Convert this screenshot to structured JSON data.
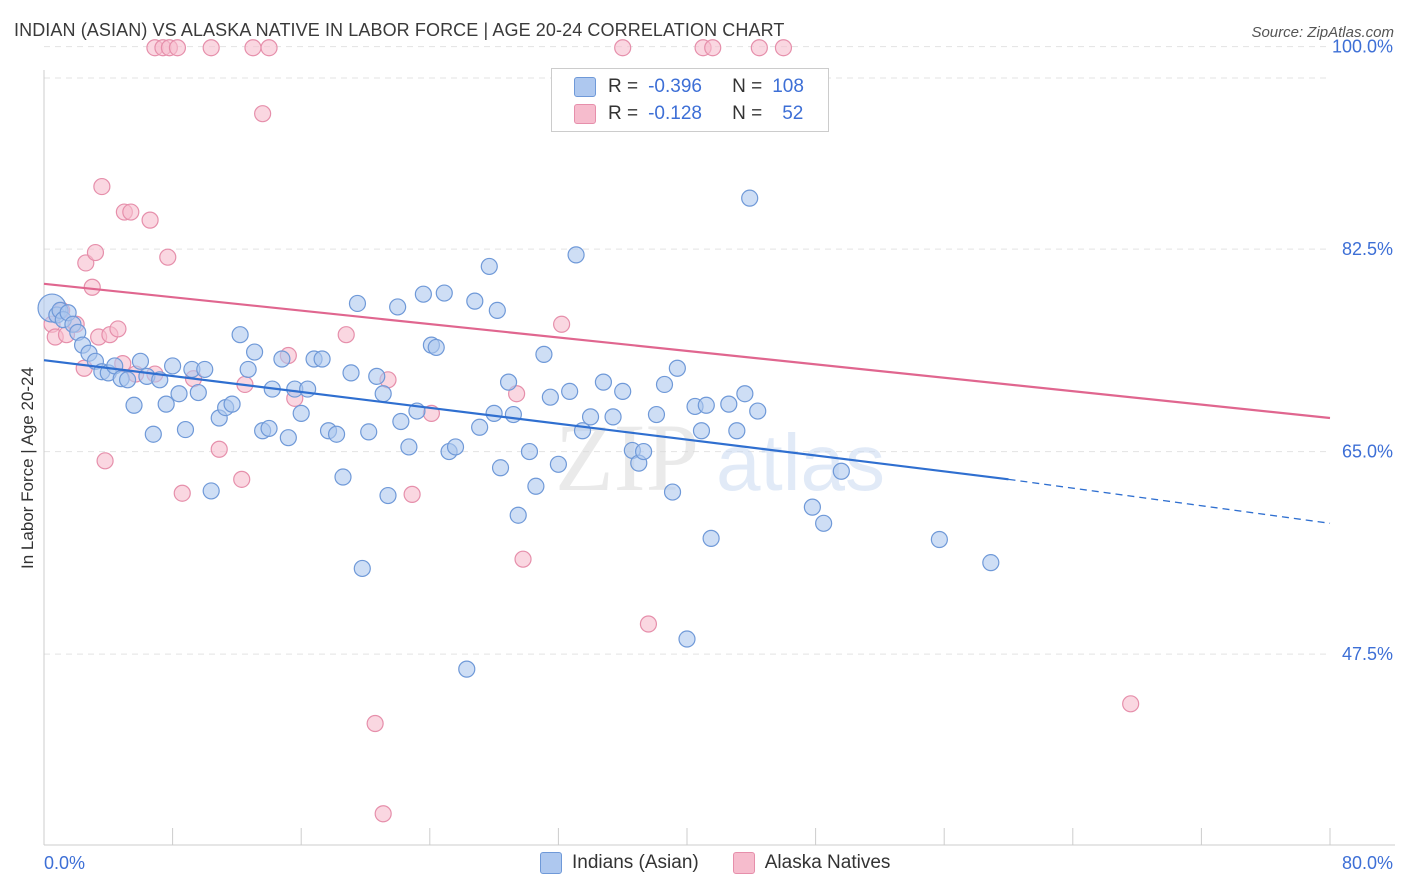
{
  "title": "INDIAN (ASIAN) VS ALASKA NATIVE IN LABOR FORCE | AGE 20-24 CORRELATION CHART",
  "source": "Source: ZipAtlas.com",
  "watermark": {
    "zip": "ZIP",
    "atlas": "atlas"
  },
  "legend": {
    "rows": [
      {
        "r_label": "R =",
        "r_value": "-0.396",
        "n_label": "N =",
        "n_value": "108"
      },
      {
        "r_label": "R =",
        "r_value": "-0.128",
        "n_label": "N =",
        "n_value": "52"
      }
    ],
    "bottom": [
      "Indians (Asian)",
      "Alaska Natives"
    ]
  },
  "colors": {
    "blue_fill": "#aec8ef",
    "blue_stroke": "#6f99d8",
    "blue_line": "#2f6fd0",
    "pink_fill": "#f6bccd",
    "pink_stroke": "#e68fab",
    "pink_line": "#e0668f",
    "tick_label": "#3d6fd6",
    "grid": "#e3e3e3"
  },
  "chart_data": {
    "type": "scatter",
    "ylabel": "In Labor Force | Age 20-24",
    "xlim": [
      0,
      80
    ],
    "ylim": [
      31,
      101
    ],
    "x_ticks": [
      "0.0%",
      "80.0%"
    ],
    "y_ticks": [
      {
        "value": 47.5,
        "label": "47.5%"
      },
      {
        "value": 65.0,
        "label": "65.0%"
      },
      {
        "value": 82.5,
        "label": "82.5%"
      },
      {
        "value": 100.0,
        "label": "100.0%"
      }
    ],
    "grid": true,
    "series": [
      {
        "name": "Indians (Asian)",
        "points": [
          [
            0.5,
            77.4
          ],
          [
            0.8,
            76.8
          ],
          [
            1.0,
            77.2
          ],
          [
            1.2,
            76.4
          ],
          [
            1.5,
            77.0
          ],
          [
            1.8,
            76.0
          ],
          [
            2.1,
            75.3
          ],
          [
            2.4,
            74.2
          ],
          [
            2.8,
            73.5
          ],
          [
            3.2,
            72.8
          ],
          [
            3.6,
            71.9
          ],
          [
            4.0,
            71.8
          ],
          [
            4.4,
            72.4
          ],
          [
            4.8,
            71.3
          ],
          [
            5.2,
            71.2
          ],
          [
            5.6,
            69.0
          ],
          [
            6.0,
            72.8
          ],
          [
            6.4,
            71.5
          ],
          [
            6.8,
            66.5
          ],
          [
            7.2,
            71.2
          ],
          [
            7.6,
            69.1
          ],
          [
            8.0,
            72.4
          ],
          [
            8.4,
            70.0
          ],
          [
            8.8,
            66.9
          ],
          [
            9.2,
            72.1
          ],
          [
            9.6,
            70.1
          ],
          [
            10.0,
            72.1
          ],
          [
            10.4,
            61.6
          ],
          [
            10.9,
            67.9
          ],
          [
            11.3,
            68.8
          ],
          [
            11.7,
            69.1
          ],
          [
            12.2,
            75.1
          ],
          [
            12.7,
            72.1
          ],
          [
            13.1,
            73.6
          ],
          [
            13.6,
            66.8
          ],
          [
            14.0,
            67.0
          ],
          [
            14.2,
            70.4
          ],
          [
            14.8,
            73.0
          ],
          [
            15.2,
            66.2
          ],
          [
            15.6,
            70.4
          ],
          [
            16.0,
            68.3
          ],
          [
            16.4,
            70.4
          ],
          [
            16.8,
            73.0
          ],
          [
            17.3,
            73.0
          ],
          [
            17.7,
            66.8
          ],
          [
            18.2,
            66.5
          ],
          [
            18.6,
            62.8
          ],
          [
            19.1,
            71.8
          ],
          [
            19.5,
            77.8
          ],
          [
            19.8,
            54.9
          ],
          [
            20.2,
            66.7
          ],
          [
            20.7,
            71.5
          ],
          [
            21.1,
            70.0
          ],
          [
            21.4,
            61.2
          ],
          [
            22.0,
            77.5
          ],
          [
            22.2,
            67.6
          ],
          [
            22.7,
            65.4
          ],
          [
            23.2,
            68.5
          ],
          [
            23.6,
            78.6
          ],
          [
            24.1,
            74.2
          ],
          [
            24.4,
            74.0
          ],
          [
            24.9,
            78.7
          ],
          [
            25.2,
            65.0
          ],
          [
            25.6,
            65.4
          ],
          [
            26.3,
            46.2
          ],
          [
            26.8,
            78.0
          ],
          [
            27.1,
            67.1
          ],
          [
            27.7,
            81.0
          ],
          [
            28.2,
            77.2
          ],
          [
            28.4,
            63.6
          ],
          [
            28.9,
            71.0
          ],
          [
            29.2,
            68.2
          ],
          [
            29.5,
            59.5
          ],
          [
            30.2,
            65.0
          ],
          [
            30.6,
            62.0
          ],
          [
            31.1,
            73.4
          ],
          [
            31.5,
            69.7
          ],
          [
            32.0,
            63.9
          ],
          [
            32.7,
            70.2
          ],
          [
            33.1,
            82.0
          ],
          [
            33.5,
            66.8
          ],
          [
            34.0,
            68.0
          ],
          [
            34.8,
            71.0
          ],
          [
            35.4,
            68.0
          ],
          [
            36.0,
            70.2
          ],
          [
            36.6,
            65.1
          ],
          [
            37.0,
            64.0
          ],
          [
            37.3,
            65.0
          ],
          [
            38.1,
            68.2
          ],
          [
            38.6,
            70.8
          ],
          [
            39.1,
            61.5
          ],
          [
            39.4,
            72.2
          ],
          [
            40.0,
            48.8
          ],
          [
            40.5,
            68.9
          ],
          [
            40.9,
            66.8
          ],
          [
            41.2,
            69.0
          ],
          [
            41.5,
            57.5
          ],
          [
            42.6,
            69.1
          ],
          [
            43.1,
            66.8
          ],
          [
            43.6,
            70.0
          ],
          [
            43.9,
            86.9
          ],
          [
            44.4,
            68.5
          ],
          [
            47.8,
            60.2
          ],
          [
            48.5,
            58.8
          ],
          [
            49.6,
            63.3
          ],
          [
            55.7,
            57.4
          ],
          [
            58.9,
            55.4
          ],
          [
            28.0,
            68.3
          ]
        ]
      },
      {
        "name": "Alaska Natives",
        "points": [
          [
            0.5,
            76.0
          ],
          [
            0.7,
            74.9
          ],
          [
            1.1,
            77.2
          ],
          [
            1.4,
            75.1
          ],
          [
            2.0,
            76.0
          ],
          [
            2.5,
            72.2
          ],
          [
            2.6,
            81.3
          ],
          [
            3.0,
            79.2
          ],
          [
            3.2,
            82.2
          ],
          [
            3.4,
            74.9
          ],
          [
            3.6,
            87.9
          ],
          [
            3.8,
            64.2
          ],
          [
            4.1,
            75.1
          ],
          [
            4.6,
            75.6
          ],
          [
            4.9,
            72.6
          ],
          [
            5.0,
            85.7
          ],
          [
            5.4,
            85.7
          ],
          [
            5.7,
            71.7
          ],
          [
            6.6,
            85.0
          ],
          [
            6.9,
            71.7
          ],
          [
            6.9,
            99.9
          ],
          [
            7.4,
            99.9
          ],
          [
            7.7,
            81.8
          ],
          [
            7.8,
            99.9
          ],
          [
            8.3,
            99.9
          ],
          [
            8.6,
            61.4
          ],
          [
            9.3,
            71.3
          ],
          [
            10.4,
            99.9
          ],
          [
            10.9,
            65.2
          ],
          [
            12.3,
            62.6
          ],
          [
            12.5,
            70.8
          ],
          [
            13.0,
            99.9
          ],
          [
            13.6,
            94.2
          ],
          [
            14.0,
            99.9
          ],
          [
            15.2,
            73.3
          ],
          [
            15.6,
            69.6
          ],
          [
            18.8,
            75.1
          ],
          [
            20.6,
            41.5
          ],
          [
            21.1,
            33.7
          ],
          [
            21.4,
            71.2
          ],
          [
            22.9,
            61.3
          ],
          [
            24.1,
            68.3
          ],
          [
            29.4,
            70.0
          ],
          [
            29.8,
            55.7
          ],
          [
            32.2,
            76.0
          ],
          [
            36.0,
            99.9
          ],
          [
            37.6,
            50.1
          ],
          [
            41.0,
            99.9
          ],
          [
            41.6,
            99.9
          ],
          [
            44.5,
            99.9
          ],
          [
            46.0,
            99.9
          ],
          [
            67.6,
            43.2
          ]
        ]
      }
    ],
    "trend_lines": [
      {
        "series": "Indians (Asian)",
        "x0": 0,
        "y0": 72.9,
        "x1": 60,
        "y1": 62.6,
        "dashed_to_x": 80,
        "dashed_to_y": 58.8
      },
      {
        "series": "Alaska Natives",
        "x0": 0,
        "y0": 79.5,
        "x1": 80,
        "y1": 67.9
      }
    ]
  }
}
